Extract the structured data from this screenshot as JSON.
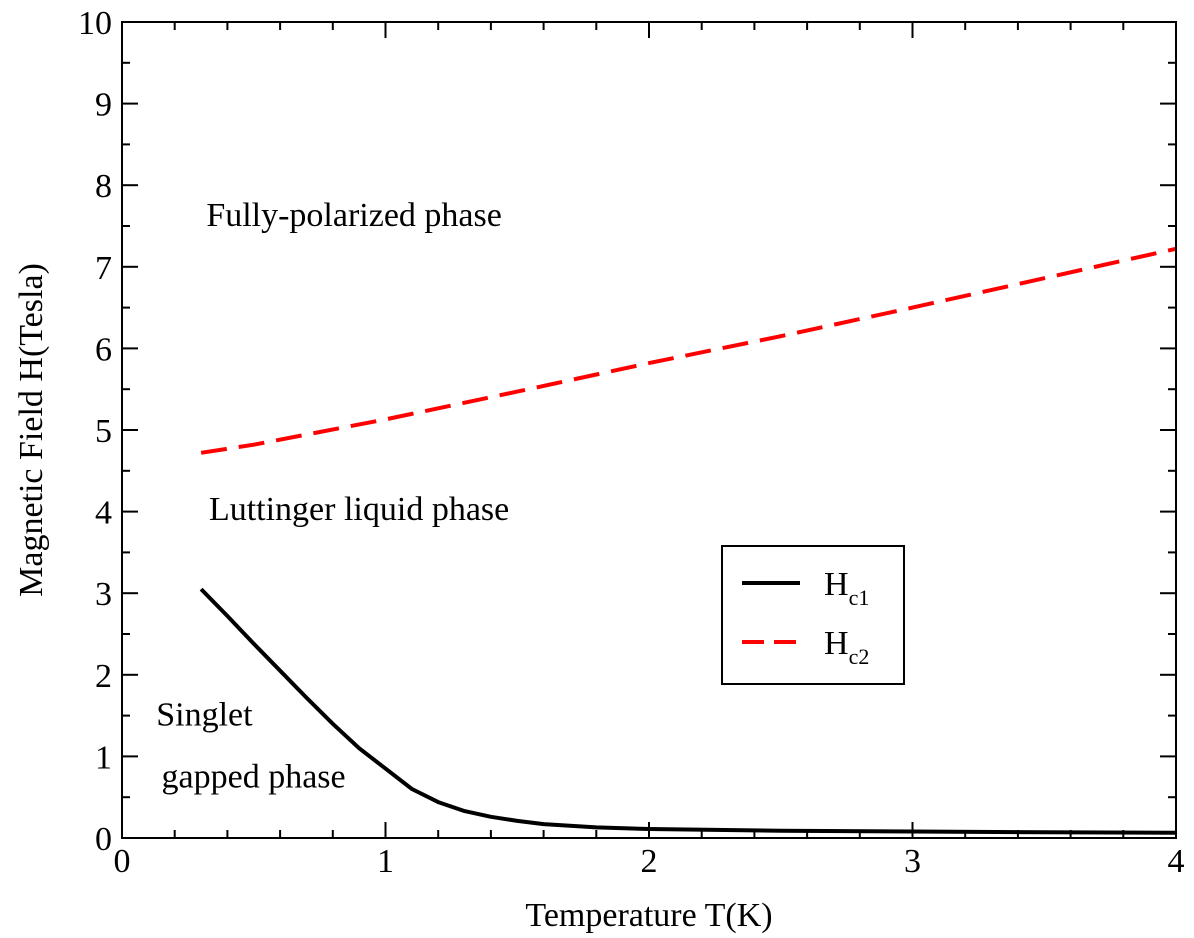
{
  "chart_data": {
    "type": "line",
    "xlabel": "Temperature T(K)",
    "ylabel": "Magnetic Field H(Tesla)",
    "xlim": [
      0,
      4
    ],
    "ylim": [
      0,
      10
    ],
    "x_ticks": [
      0,
      1,
      2,
      3,
      4
    ],
    "y_ticks": [
      0,
      1,
      2,
      3,
      4,
      5,
      6,
      7,
      8,
      9,
      10
    ],
    "grid": false,
    "legend_placement": "center-right",
    "series": [
      {
        "name": "H",
        "subscript": "c1",
        "color": "#000000",
        "style": "solid",
        "x": [
          0.3,
          0.4,
          0.5,
          0.6,
          0.7,
          0.8,
          0.9,
          1.0,
          1.1,
          1.2,
          1.3,
          1.4,
          1.5,
          1.6,
          1.8,
          2.0,
          2.5,
          3.0,
          3.5,
          4.0
        ],
        "y": [
          3.05,
          2.72,
          2.38,
          2.05,
          1.72,
          1.4,
          1.1,
          0.85,
          0.6,
          0.44,
          0.33,
          0.26,
          0.21,
          0.17,
          0.13,
          0.11,
          0.09,
          0.08,
          0.07,
          0.065
        ]
      },
      {
        "name": "H",
        "subscript": "c2",
        "color": "#ff0000",
        "style": "dashed",
        "x": [
          0.3,
          0.5,
          1.0,
          1.5,
          2.0,
          2.5,
          3.0,
          3.5,
          4.0
        ],
        "y": [
          4.72,
          4.82,
          5.13,
          5.47,
          5.82,
          6.15,
          6.5,
          6.86,
          7.22
        ]
      }
    ],
    "annotations": [
      {
        "text": "Fully-polarized phase",
        "x": 0.32,
        "y": 7.5
      },
      {
        "text": "Luttinger liquid phase",
        "x": 0.33,
        "y": 3.9
      },
      {
        "text": "Singlet",
        "x": 0.13,
        "y": 1.38
      },
      {
        "text": "gapped phase",
        "x": 0.15,
        "y": 0.62
      }
    ]
  }
}
